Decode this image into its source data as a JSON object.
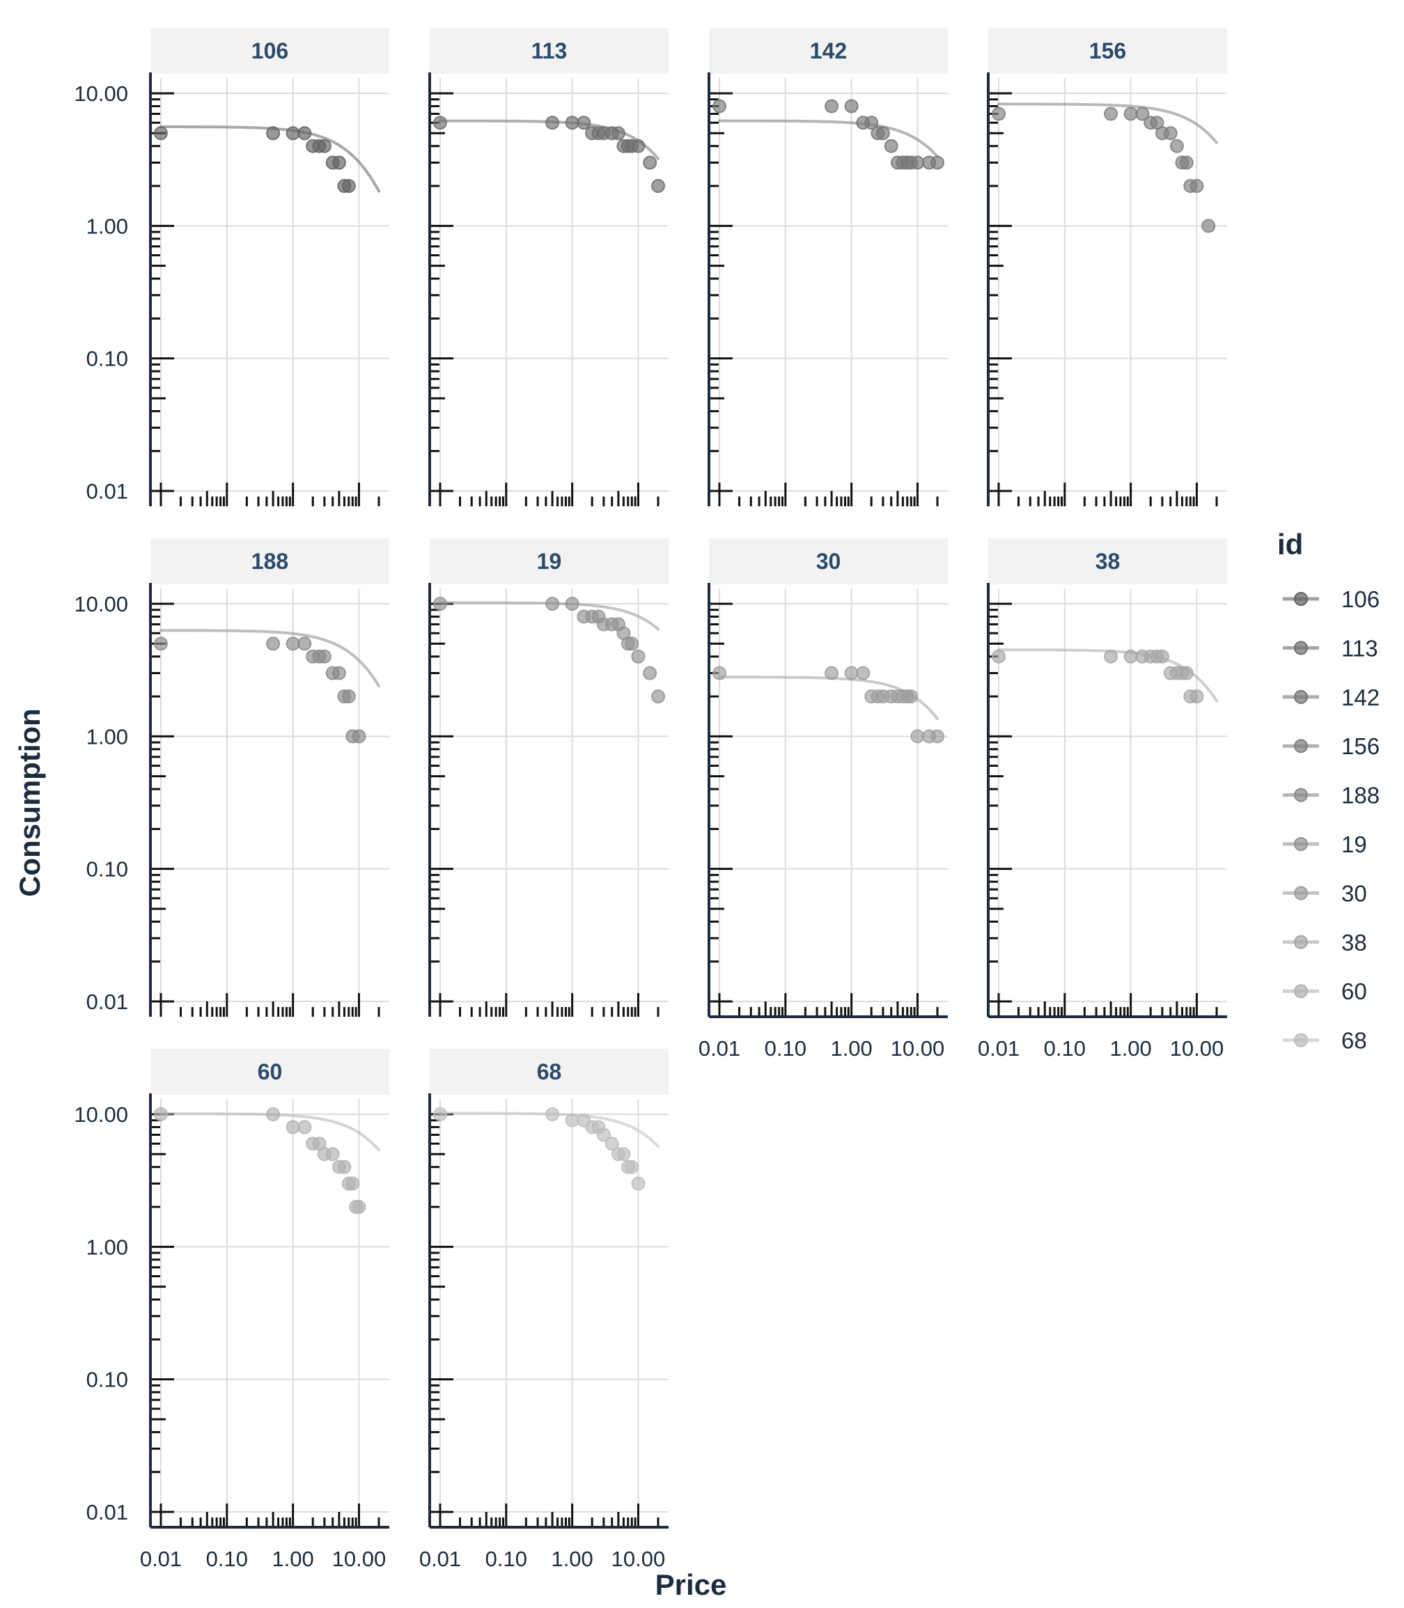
{
  "chart_data": {
    "type": "scatter",
    "xlabel": "Price",
    "ylabel": "Consumption",
    "x_scale": "log",
    "y_scale": "log",
    "xlim": [
      0.01,
      20
    ],
    "ylim": [
      0.01,
      10
    ],
    "x_ticks": [
      0.01,
      0.1,
      1,
      10
    ],
    "x_tick_labels": [
      "0.01",
      "0.10",
      "1.00",
      "10.00"
    ],
    "y_ticks": [
      0.01,
      0.1,
      1,
      10
    ],
    "y_tick_labels": [
      "0.01",
      "0.10",
      "1.00",
      "10.00"
    ],
    "grid": true,
    "legend": {
      "title": "id",
      "placement": "right",
      "entries": [
        "106",
        "113",
        "142",
        "156",
        "188",
        "19",
        "30",
        "38",
        "60",
        "68"
      ]
    },
    "panels": [
      {
        "id": "106",
        "color": "#616161",
        "points": [
          [
            0.01,
            5
          ],
          [
            0.5,
            5
          ],
          [
            1,
            5
          ],
          [
            1.5,
            5
          ],
          [
            2,
            4
          ],
          [
            2.5,
            4
          ],
          [
            3,
            4
          ],
          [
            4,
            3
          ],
          [
            5,
            3
          ],
          [
            6,
            2
          ],
          [
            7,
            2
          ]
        ],
        "fit": {
          "q0": 5.6,
          "alpha": 0.0035
        }
      },
      {
        "id": "113",
        "color": "#6d6d6d",
        "points": [
          [
            0.01,
            6
          ],
          [
            0.5,
            6
          ],
          [
            1,
            6
          ],
          [
            1.5,
            6
          ],
          [
            2,
            5
          ],
          [
            2.5,
            5
          ],
          [
            3,
            5
          ],
          [
            4,
            5
          ],
          [
            5,
            5
          ],
          [
            6,
            4
          ],
          [
            7,
            4
          ],
          [
            8,
            4
          ],
          [
            10,
            4
          ],
          [
            15,
            3
          ],
          [
            20,
            2
          ]
        ],
        "fit": {
          "q0": 6.2,
          "alpha": 0.0017
        }
      },
      {
        "id": "142",
        "color": "#767676",
        "points": [
          [
            0.01,
            8
          ],
          [
            0.5,
            8
          ],
          [
            1,
            8
          ],
          [
            1.5,
            6
          ],
          [
            2,
            6
          ],
          [
            2.5,
            5
          ],
          [
            3,
            5
          ],
          [
            4,
            4
          ],
          [
            5,
            3
          ],
          [
            6,
            3
          ],
          [
            7,
            3
          ],
          [
            8,
            3
          ],
          [
            10,
            3
          ],
          [
            15,
            3
          ],
          [
            20,
            3
          ]
        ],
        "fit": {
          "q0": 6.2,
          "alpha": 0.0016
        }
      },
      {
        "id": "156",
        "color": "#7e7e7e",
        "points": [
          [
            0.01,
            7
          ],
          [
            0.5,
            7
          ],
          [
            1,
            7
          ],
          [
            1.5,
            7
          ],
          [
            2,
            6
          ],
          [
            2.5,
            6
          ],
          [
            3,
            5
          ],
          [
            4,
            5
          ],
          [
            5,
            4
          ],
          [
            6,
            3
          ],
          [
            7,
            3
          ],
          [
            8,
            2
          ],
          [
            10,
            2
          ],
          [
            15,
            1
          ]
        ],
        "fit": {
          "q0": 8.3,
          "alpha": 0.0013
        }
      },
      {
        "id": "188",
        "color": "#888888",
        "points": [
          [
            0.01,
            5
          ],
          [
            0.5,
            5
          ],
          [
            1,
            5
          ],
          [
            1.5,
            5
          ],
          [
            2,
            4
          ],
          [
            2.5,
            4
          ],
          [
            3,
            4
          ],
          [
            4,
            3
          ],
          [
            5,
            3
          ],
          [
            6,
            2
          ],
          [
            7,
            2
          ],
          [
            8,
            1
          ],
          [
            10,
            1
          ]
        ],
        "fit": {
          "q0": 6.3,
          "alpha": 0.0026
        }
      },
      {
        "id": "19",
        "color": "#929292",
        "points": [
          [
            0.01,
            10
          ],
          [
            0.5,
            10
          ],
          [
            1,
            10
          ],
          [
            1.5,
            8
          ],
          [
            2,
            8
          ],
          [
            2.5,
            8
          ],
          [
            3,
            7
          ],
          [
            4,
            7
          ],
          [
            5,
            7
          ],
          [
            6,
            6
          ],
          [
            7,
            5
          ],
          [
            8,
            5
          ],
          [
            10,
            4
          ],
          [
            15,
            3
          ],
          [
            20,
            2
          ]
        ],
        "fit": {
          "q0": 10.2,
          "alpha": 0.0007
        }
      },
      {
        "id": "30",
        "color": "#9c9c9c",
        "points": [
          [
            0.01,
            3
          ],
          [
            0.5,
            3
          ],
          [
            1,
            3
          ],
          [
            1.5,
            3
          ],
          [
            2,
            2
          ],
          [
            2.5,
            2
          ],
          [
            3,
            2
          ],
          [
            4,
            2
          ],
          [
            5,
            2
          ],
          [
            6,
            2
          ],
          [
            7,
            2
          ],
          [
            8,
            2
          ],
          [
            10,
            1
          ],
          [
            15,
            1
          ],
          [
            20,
            1
          ]
        ],
        "fit": {
          "q0": 2.8,
          "alpha": 0.0042
        }
      },
      {
        "id": "38",
        "color": "#a6a6a6",
        "points": [
          [
            0.01,
            4
          ],
          [
            0.5,
            4
          ],
          [
            1,
            4
          ],
          [
            1.5,
            4
          ],
          [
            2,
            4
          ],
          [
            2.5,
            4
          ],
          [
            3,
            4
          ],
          [
            4,
            3
          ],
          [
            5,
            3
          ],
          [
            6,
            3
          ],
          [
            7,
            3
          ],
          [
            8,
            2
          ],
          [
            10,
            2
          ]
        ],
        "fit": {
          "q0": 4.5,
          "alpha": 0.0033
        }
      },
      {
        "id": "60",
        "color": "#b1b1b1",
        "points": [
          [
            0.01,
            10
          ],
          [
            0.5,
            10
          ],
          [
            1,
            8
          ],
          [
            1.5,
            8
          ],
          [
            2,
            6
          ],
          [
            2.5,
            6
          ],
          [
            3,
            5
          ],
          [
            4,
            5
          ],
          [
            5,
            4
          ],
          [
            6,
            4
          ],
          [
            7,
            3
          ],
          [
            8,
            3
          ],
          [
            9,
            2
          ],
          [
            10,
            2
          ]
        ],
        "fit": {
          "q0": 10.1,
          "alpha": 0.001
        }
      },
      {
        "id": "68",
        "color": "#bcbcbc",
        "points": [
          [
            0.01,
            10
          ],
          [
            0.5,
            10
          ],
          [
            1,
            9
          ],
          [
            1.5,
            9
          ],
          [
            2,
            8
          ],
          [
            2.5,
            8
          ],
          [
            3,
            7
          ],
          [
            4,
            6
          ],
          [
            5,
            5
          ],
          [
            6,
            5
          ],
          [
            7,
            4
          ],
          [
            8,
            4
          ],
          [
            10,
            3
          ]
        ],
        "fit": {
          "q0": 10.2,
          "alpha": 0.0009
        }
      }
    ]
  }
}
